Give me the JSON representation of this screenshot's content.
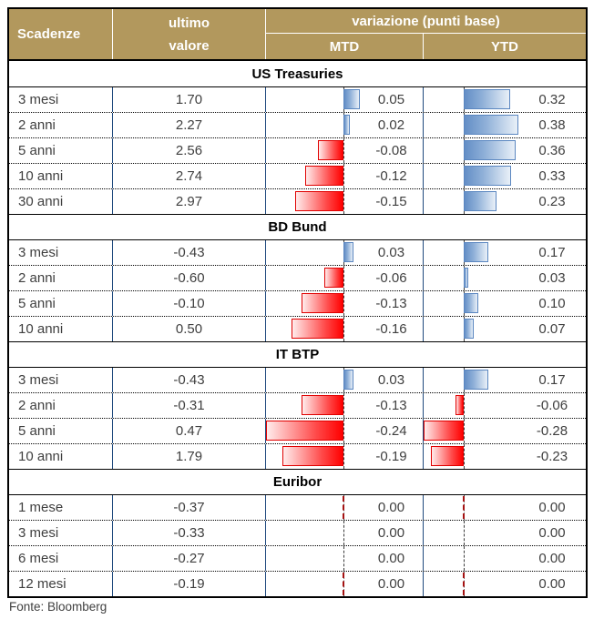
{
  "header": {
    "scadenze": "Scadenze",
    "ultimo_line1": "ultimo",
    "ultimo_line2": "valore",
    "variazione": "variazione (punti base)",
    "mtd": "MTD",
    "ytd": "YTD"
  },
  "footer": {
    "source": "Fonte: Bloomberg"
  },
  "colors": {
    "header_bg": "#B2985D",
    "header_text": "#FFFFFF",
    "column_border": "#1F497D",
    "positive_bar": "#638EC6",
    "negative_bar": "#FF0000",
    "zero_line": "#3A3A3A",
    "body_text": "#3F3F3F"
  },
  "chart_data": {
    "type": "table",
    "title": "",
    "columns": [
      "Scadenze",
      "ultimo valore",
      "variazione (punti base) MTD",
      "variazione (punti base) YTD"
    ],
    "legend_position": "none",
    "grid": "dotted-row-separators",
    "bar_columns": {
      "mtd": {
        "min": -0.24,
        "max": 0.05
      },
      "ytd": {
        "min": -0.28,
        "max": 0.38
      }
    },
    "sections": [
      {
        "title": "US Treasuries",
        "rows": [
          {
            "label": "3 mesi",
            "last": "1.70",
            "mtd": "0.05",
            "ytd": "0.32"
          },
          {
            "label": "2 anni",
            "last": "2.27",
            "mtd": "0.02",
            "ytd": "0.38"
          },
          {
            "label": "5 anni",
            "last": "2.56",
            "mtd": "-0.08",
            "ytd": "0.36"
          },
          {
            "label": "10 anni",
            "last": "2.74",
            "mtd": "-0.12",
            "ytd": "0.33"
          },
          {
            "label": "30 anni",
            "last": "2.97",
            "mtd": "-0.15",
            "ytd": "0.23"
          }
        ]
      },
      {
        "title": "BD Bund",
        "rows": [
          {
            "label": "3 mesi",
            "last": "-0.43",
            "mtd": "0.03",
            "ytd": "0.17"
          },
          {
            "label": "2 anni",
            "last": "-0.60",
            "mtd": "-0.06",
            "ytd": "0.03"
          },
          {
            "label": "5 anni",
            "last": "-0.10",
            "mtd": "-0.13",
            "ytd": "0.10"
          },
          {
            "label": "10 anni",
            "last": "0.50",
            "mtd": "-0.16",
            "ytd": "0.07"
          }
        ]
      },
      {
        "title": "IT BTP",
        "rows": [
          {
            "label": "3 mesi",
            "last": "-0.43",
            "mtd": "0.03",
            "ytd": "0.17"
          },
          {
            "label": "2 anni",
            "last": "-0.31",
            "mtd": "-0.13",
            "ytd": "-0.06"
          },
          {
            "label": "5 anni",
            "last": "0.47",
            "mtd": "-0.24",
            "ytd": "-0.28"
          },
          {
            "label": "10 anni",
            "last": "1.79",
            "mtd": "-0.19",
            "ytd": "-0.23"
          }
        ]
      },
      {
        "title": "Euribor",
        "rows": [
          {
            "label": "1 mese",
            "last": "-0.37",
            "mtd": "0.00",
            "ytd": "0.00",
            "zero_tick": true
          },
          {
            "label": "3 mesi",
            "last": "-0.33",
            "mtd": "0.00",
            "ytd": "0.00"
          },
          {
            "label": "6 mesi",
            "last": "-0.27",
            "mtd": "0.00",
            "ytd": "0.00"
          },
          {
            "label": "12 mesi",
            "last": "-0.19",
            "mtd": "0.00",
            "ytd": "0.00",
            "zero_tick": true
          }
        ]
      }
    ]
  }
}
